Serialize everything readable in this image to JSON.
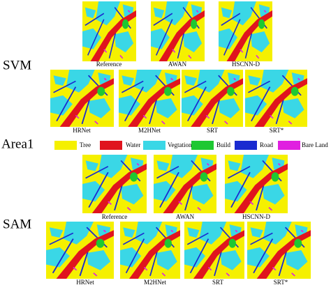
{
  "row_labels": [
    "SVM",
    "Area1",
    "SAM"
  ],
  "svm": {
    "top": [
      "Reference",
      "AWAN",
      "HSCNN-D"
    ],
    "bottom": [
      "HRNet",
      "M2HNet",
      "SRT",
      "SRT*"
    ]
  },
  "legend": [
    "Tree",
    "Water",
    "Vegtation",
    "Build",
    "Road",
    "Bare Land"
  ],
  "sam": {
    "top": [
      "Reference",
      "AWAN",
      "HSCNN-D"
    ],
    "bottom": [
      "HRNet",
      "M2HNet",
      "SRT",
      "SRT*"
    ]
  }
}
